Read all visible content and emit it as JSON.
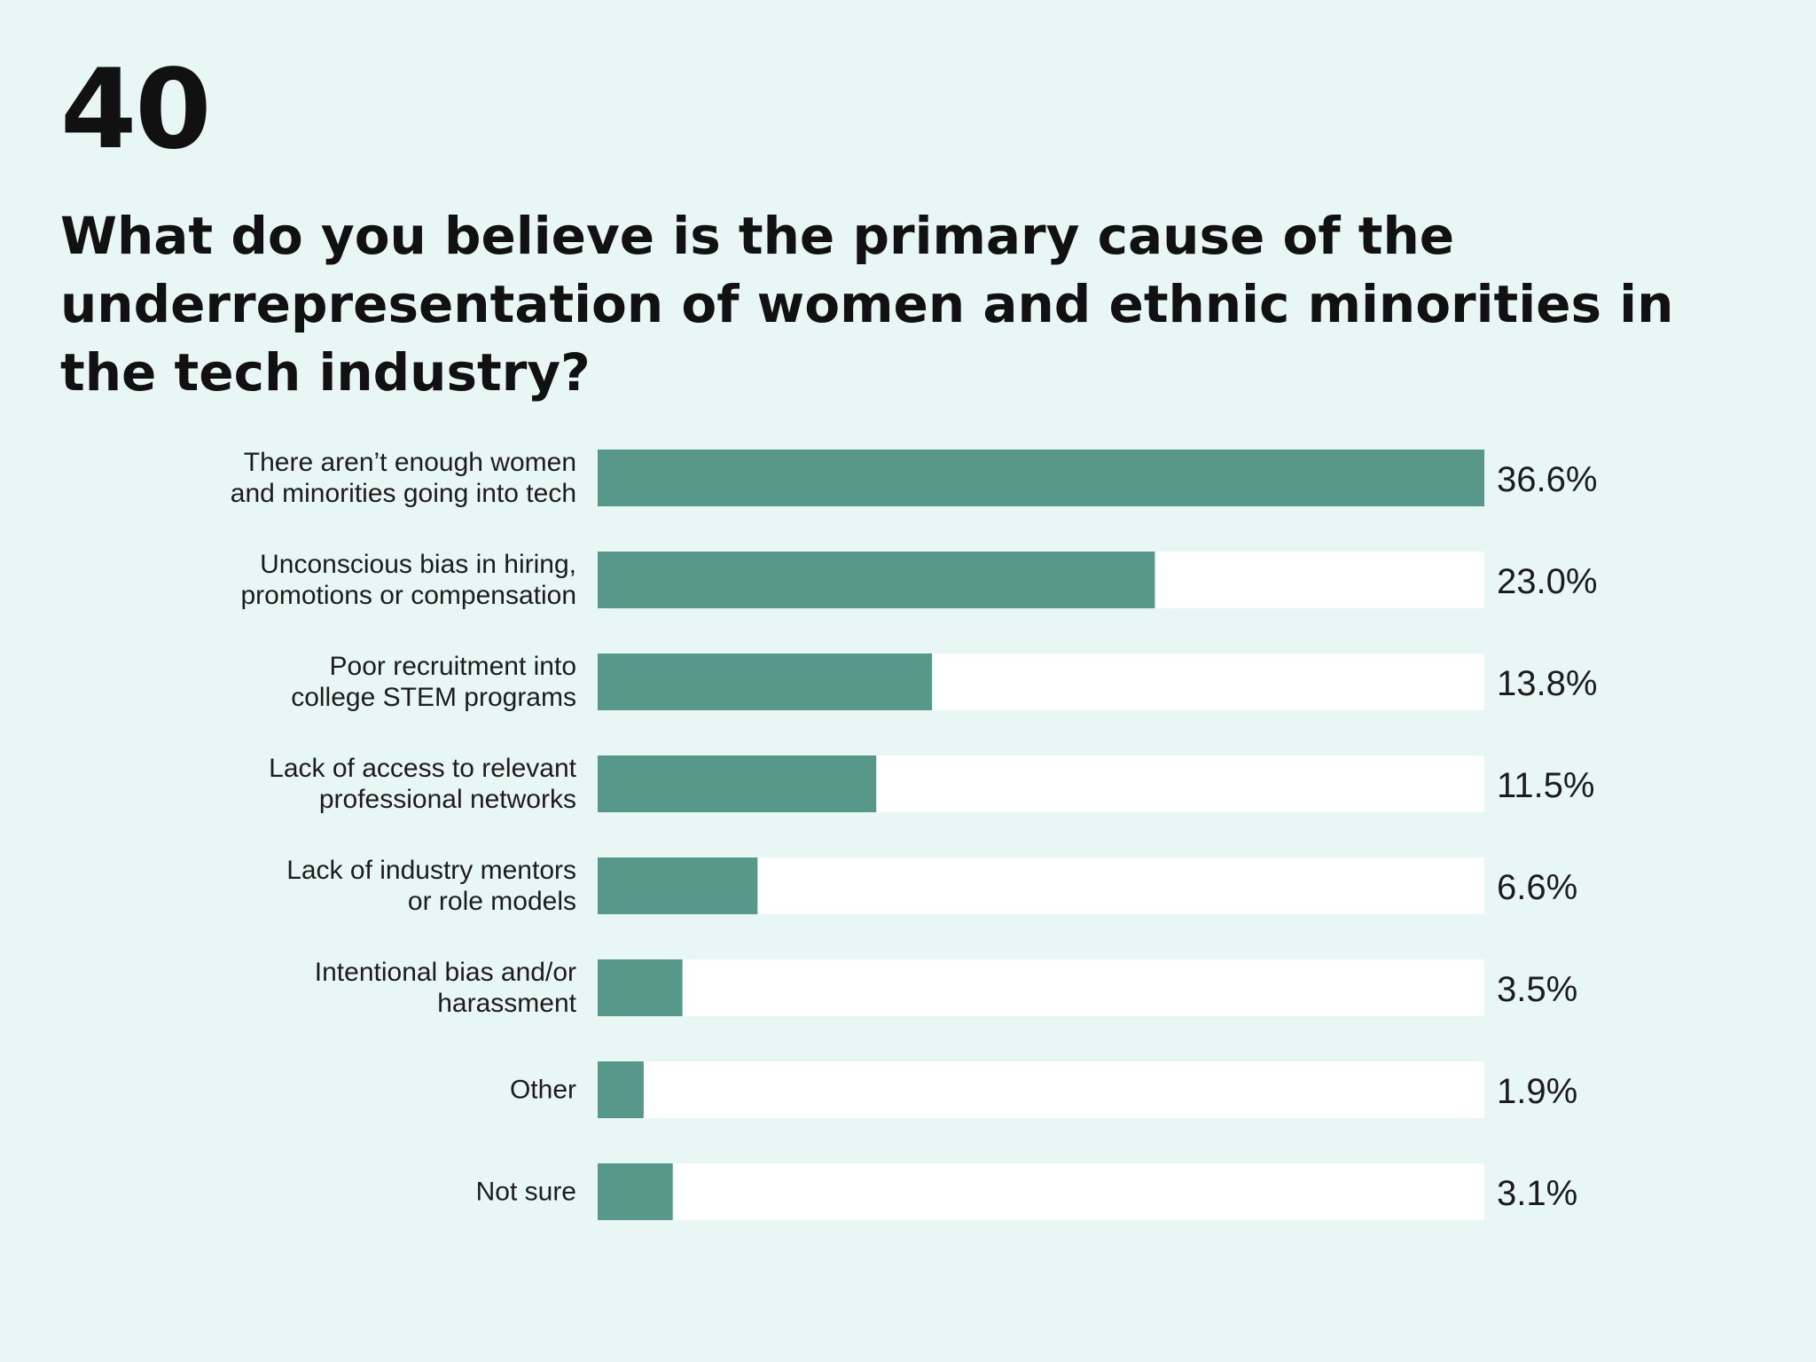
{
  "page_number": "40",
  "question": "What do you believe is the primary cause of the underrepresentation of women and ethnic minorities in the tech industry?",
  "colors": {
    "background": "#e8f7f3",
    "bar_fill": "#57988b",
    "bar_track": "#ffffff",
    "text": "#111111"
  },
  "chart_data": {
    "type": "bar",
    "orientation": "horizontal",
    "categories": [
      [
        "There aren’t enough women",
        "and minorities going into tech"
      ],
      [
        "Unconscious bias in hiring,",
        "promotions or compensation"
      ],
      [
        "Poor recruitment into",
        "college STEM programs"
      ],
      [
        "Lack of access to relevant",
        "professional networks"
      ],
      [
        "Lack of industry mentors",
        "or role models"
      ],
      [
        "Intentional bias and/or",
        "harassment"
      ],
      [
        "Other"
      ],
      [
        "Not sure"
      ]
    ],
    "values": [
      36.6,
      23.0,
      13.8,
      11.5,
      6.6,
      3.5,
      1.9,
      3.1
    ],
    "value_labels": [
      "36.6%",
      "23.0%",
      "13.8%",
      "11.5%",
      "6.6%",
      "3.5%",
      "1.9%",
      "3.1%"
    ],
    "xlim": [
      0,
      36.6
    ],
    "grid": false,
    "legend": "none"
  }
}
